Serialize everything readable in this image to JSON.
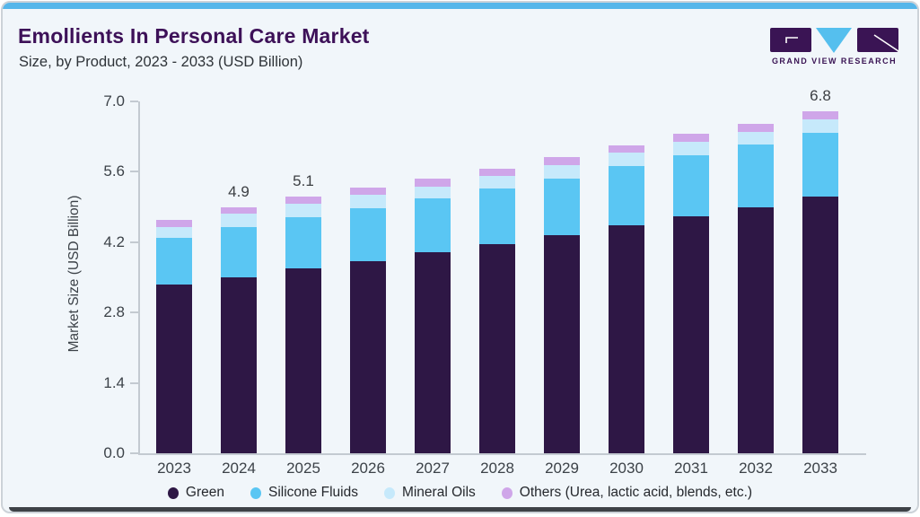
{
  "header": {
    "title": "Emollients In Personal Care Market",
    "subtitle": "Size, by Product, 2023 - 2033 (USD Billion)"
  },
  "logo": {
    "text": "GRAND VIEW RESEARCH",
    "mark_colors": {
      "purple": "#3a1454",
      "cyan": "#55bfee"
    }
  },
  "colors": {
    "accent_bar": "#55b6ea",
    "card_background": "#f1f6fa",
    "title_text": "#3d1158",
    "axis": "#c3cad1"
  },
  "chart_data": {
    "type": "bar",
    "stacked": true,
    "categories": [
      "2023",
      "2024",
      "2025",
      "2026",
      "2027",
      "2028",
      "2029",
      "2030",
      "2031",
      "2032",
      "2033"
    ],
    "series": [
      {
        "name": "Green",
        "color": "#2e1745",
        "values": [
          3.35,
          3.5,
          3.67,
          3.82,
          4.0,
          4.16,
          4.34,
          4.54,
          4.71,
          4.89,
          5.1
        ]
      },
      {
        "name": "Silicone Fluids",
        "color": "#5ac6f3",
        "values": [
          0.94,
          1.0,
          1.02,
          1.05,
          1.08,
          1.11,
          1.13,
          1.18,
          1.21,
          1.25,
          1.27
        ]
      },
      {
        "name": "Mineral Oils",
        "color": "#c6e9fb",
        "values": [
          0.21,
          0.26,
          0.27,
          0.28,
          0.23,
          0.24,
          0.26,
          0.27,
          0.27,
          0.26,
          0.27
        ]
      },
      {
        "name": "Others (Urea, lactic acid, blends, etc.)",
        "color": "#cfa6e9",
        "values": [
          0.15,
          0.14,
          0.14,
          0.14,
          0.16,
          0.15,
          0.17,
          0.14,
          0.16,
          0.15,
          0.16
        ]
      }
    ],
    "bar_labels": [
      {
        "category": "2024",
        "text": "4.9"
      },
      {
        "category": "2025",
        "text": "5.1"
      },
      {
        "category": "2033",
        "text": "6.8"
      }
    ],
    "ylabel": "Market Size (USD Billion)",
    "ylim": [
      0,
      7
    ],
    "yticks": [
      "0.0",
      "1.4",
      "2.8",
      "4.2",
      "5.6",
      "7.0"
    ],
    "grid": false,
    "legend_position": "bottom"
  }
}
